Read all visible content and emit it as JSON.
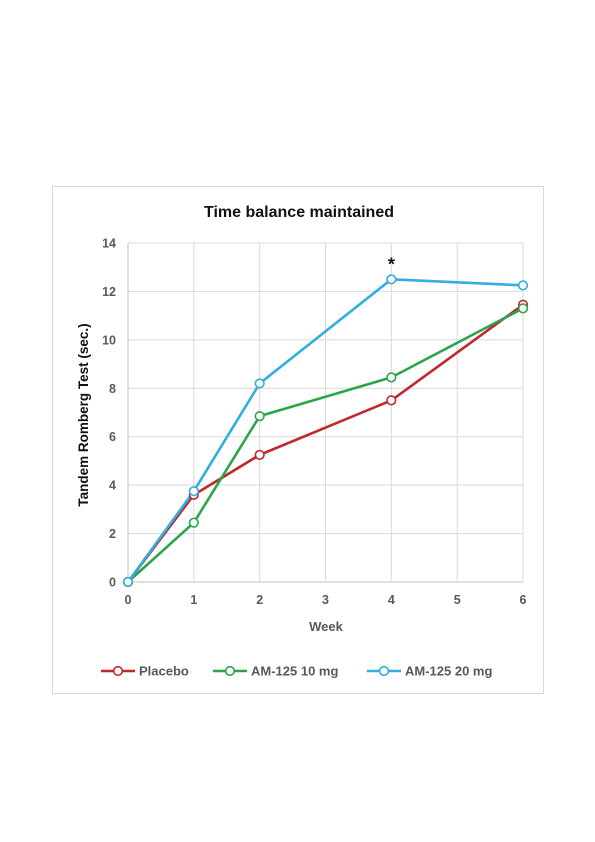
{
  "chart_data": {
    "type": "line",
    "title": "Time balance maintained",
    "xlabel": "Week",
    "ylabel": "Tandem Romberg Test (sec.)",
    "x_ticks": [
      0,
      1,
      2,
      3,
      4,
      5,
      6
    ],
    "y_ticks": [
      0,
      2,
      4,
      6,
      8,
      10,
      12,
      14
    ],
    "xlim": [
      0,
      6
    ],
    "ylim": [
      0,
      14
    ],
    "grid": true,
    "legend_position": "bottom",
    "series": [
      {
        "name": "Placebo",
        "color": "#c0282d",
        "x": [
          0,
          1,
          2,
          4,
          6
        ],
        "y": [
          0,
          3.6,
          5.25,
          7.5,
          11.45
        ]
      },
      {
        "name": "AM-125 10 mg",
        "color": "#2aa54b",
        "x": [
          0,
          1,
          2,
          4,
          6
        ],
        "y": [
          0,
          2.45,
          6.85,
          8.45,
          11.3
        ]
      },
      {
        "name": "AM-125 20 mg",
        "color": "#33aee0",
        "x": [
          0,
          1,
          2,
          4,
          6
        ],
        "y": [
          0,
          3.75,
          8.2,
          12.5,
          12.25
        ]
      }
    ],
    "annotations": [
      {
        "text": "*",
        "x": 4,
        "y": 12.5
      }
    ]
  }
}
